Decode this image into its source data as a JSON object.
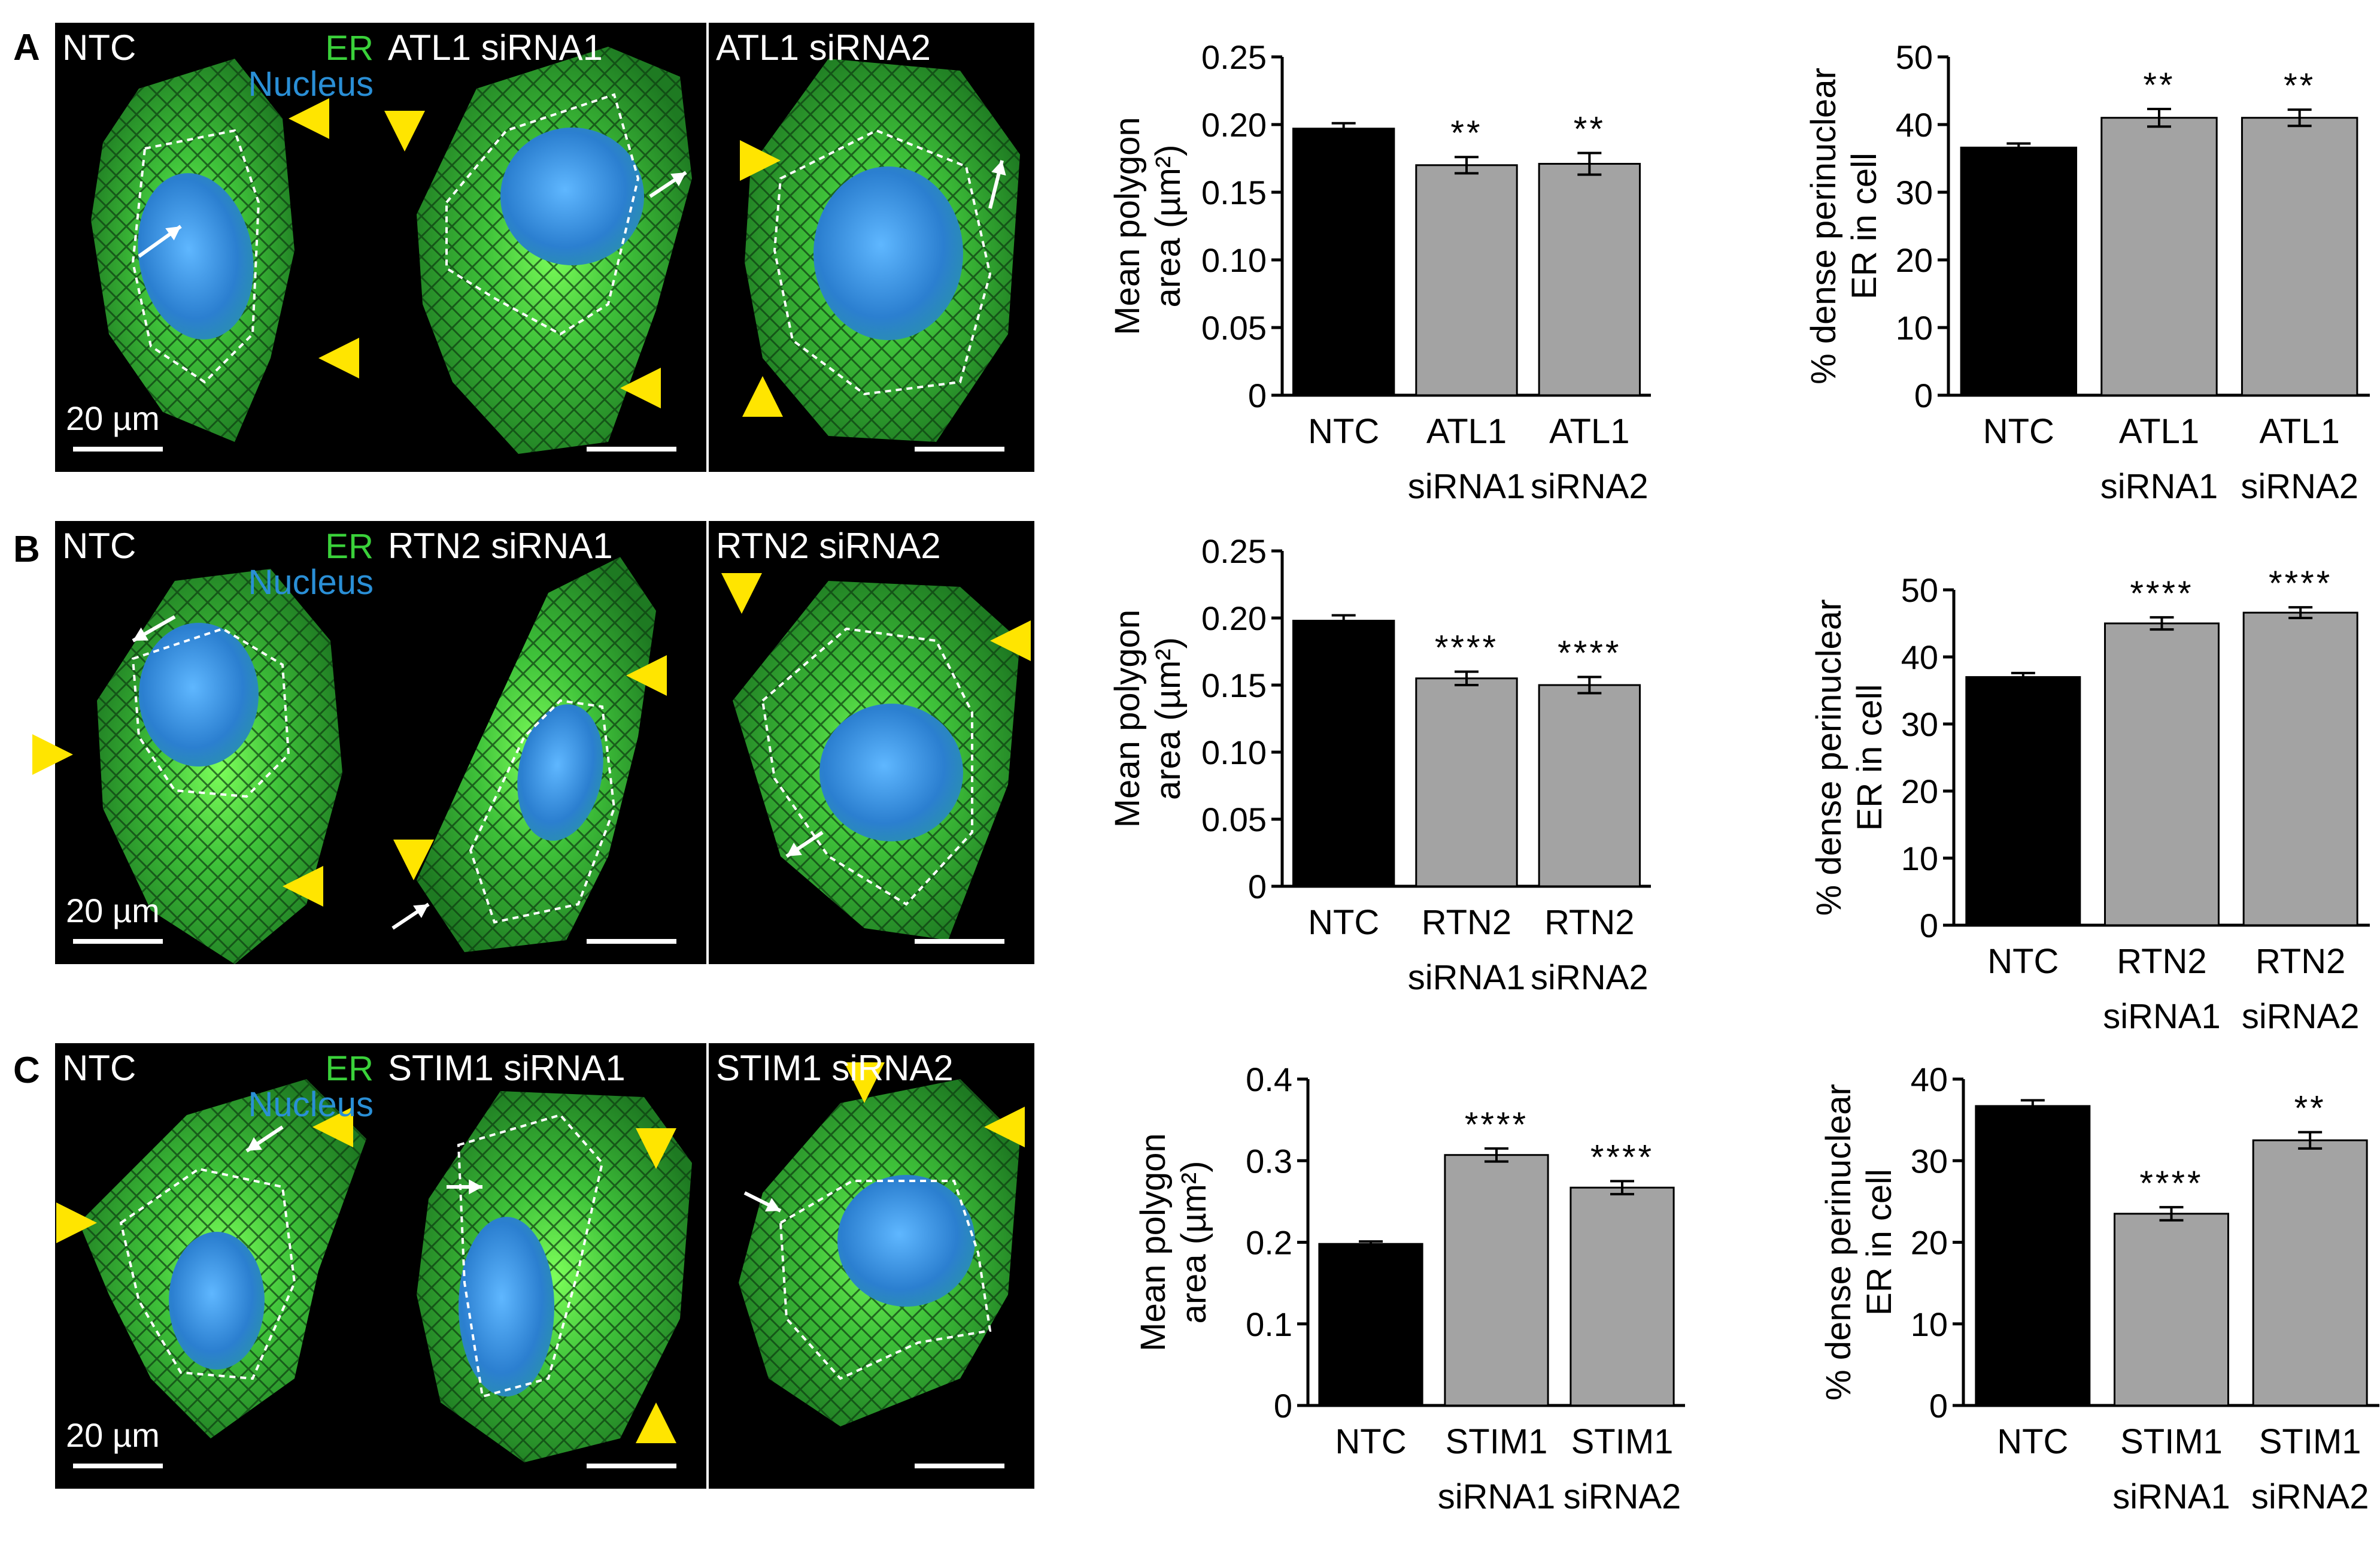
{
  "figure": {
    "rows": [
      {
        "letter": "A",
        "panels": [
          {
            "label": "NTC",
            "legend_er": "ER",
            "legend_nucleus": "Nucleus",
            "scale_label": "20 µm"
          },
          {
            "label": "ATL1 siRNA1"
          },
          {
            "label": "ATL1 siRNA2"
          }
        ]
      },
      {
        "letter": "B",
        "panels": [
          {
            "label": "NTC",
            "legend_er": "ER",
            "legend_nucleus": "Nucleus",
            "scale_label": "20 µm"
          },
          {
            "label": "RTN2 siRNA1"
          },
          {
            "label": "RTN2 siRNA2"
          }
        ]
      },
      {
        "letter": "C",
        "panels": [
          {
            "label": "NTC",
            "legend_er": "ER",
            "legend_nucleus": "Nucleus",
            "scale_label": "20 µm"
          },
          {
            "label": "STIM1 siRNA1"
          },
          {
            "label": "STIM1 siRNA2"
          }
        ]
      }
    ],
    "colors": {
      "micrograph_background": "#000000",
      "er_green": "#2fa02f",
      "nucleus_blue": "#2a86c9",
      "arrowhead_yellow": "#ffe500",
      "control_bar": "#000000",
      "knockdown_bar": "#a3a3a3"
    }
  },
  "chart_data": [
    {
      "type": "bar",
      "row": "A",
      "ylabel_line1": "Mean polygon",
      "ylabel_line2": "area (µm²)",
      "ylim": [
        0,
        0.25
      ],
      "yticks": [
        "0",
        "0.05",
        "0.10",
        "0.15",
        "0.20",
        "0.25"
      ],
      "categories": [
        [
          "NTC"
        ],
        [
          "ATL1",
          "siRNA1"
        ],
        [
          "ATL1",
          "siRNA2"
        ]
      ],
      "values": [
        0.197,
        0.17,
        0.171
      ],
      "errors": [
        0.004,
        0.006,
        0.008
      ],
      "significance": [
        "",
        "**",
        "**"
      ]
    },
    {
      "type": "bar",
      "row": "A",
      "ylabel_line1": "% dense perinuclear",
      "ylabel_line2": "ER in cell",
      "ylim": [
        0,
        50
      ],
      "yticks": [
        "0",
        "10",
        "20",
        "30",
        "40",
        "50"
      ],
      "categories": [
        [
          "NTC"
        ],
        [
          "ATL1",
          "siRNA1"
        ],
        [
          "ATL1",
          "siRNA2"
        ]
      ],
      "values": [
        36.6,
        41.0,
        41.0
      ],
      "errors": [
        0.6,
        1.3,
        1.2
      ],
      "significance": [
        "",
        "**",
        "**"
      ]
    },
    {
      "type": "bar",
      "row": "B",
      "ylabel_line1": "Mean polygon",
      "ylabel_line2": "area (µm²)",
      "ylim": [
        0,
        0.25
      ],
      "yticks": [
        "0",
        "0.05",
        "0.10",
        "0.15",
        "0.20",
        "0.25"
      ],
      "categories": [
        [
          "NTC"
        ],
        [
          "RTN2",
          "siRNA1"
        ],
        [
          "RTN2",
          "siRNA2"
        ]
      ],
      "values": [
        0.198,
        0.155,
        0.15
      ],
      "errors": [
        0.004,
        0.005,
        0.006
      ],
      "significance": [
        "",
        "****",
        "****"
      ]
    },
    {
      "type": "bar",
      "row": "B",
      "ylabel_line1": "% dense perinuclear",
      "ylabel_line2": "ER in cell",
      "ylim": [
        0,
        50
      ],
      "yticks": [
        "0",
        "10",
        "20",
        "30",
        "40",
        "50"
      ],
      "categories": [
        [
          "NTC"
        ],
        [
          "RTN2",
          "siRNA1"
        ],
        [
          "RTN2",
          "siRNA2"
        ]
      ],
      "values": [
        37.0,
        45.0,
        46.6
      ],
      "errors": [
        0.6,
        0.9,
        0.8
      ],
      "significance": [
        "",
        "****",
        "****"
      ]
    },
    {
      "type": "bar",
      "row": "C",
      "ylabel_line1": "Mean polygon",
      "ylabel_line2": "area (µm²)",
      "ylim": [
        0,
        0.4
      ],
      "yticks": [
        "0",
        "0.1",
        "0.2",
        "0.3",
        "0.4"
      ],
      "categories": [
        [
          "NTC"
        ],
        [
          "STIM1",
          "siRNA1"
        ],
        [
          "STIM1",
          "siRNA2"
        ]
      ],
      "values": [
        0.198,
        0.307,
        0.267
      ],
      "errors": [
        0.003,
        0.008,
        0.008
      ],
      "significance": [
        "",
        "****",
        "****"
      ]
    },
    {
      "type": "bar",
      "row": "C",
      "ylabel_line1": "% dense perinuclear",
      "ylabel_line2": "ER in cell",
      "ylim": [
        0,
        40
      ],
      "yticks": [
        "0",
        "10",
        "20",
        "30",
        "40"
      ],
      "categories": [
        [
          "NTC"
        ],
        [
          "STIM1",
          "siRNA1"
        ],
        [
          "STIM1",
          "siRNA2"
        ]
      ],
      "values": [
        36.7,
        23.5,
        32.5
      ],
      "errors": [
        0.7,
        0.8,
        1.0
      ],
      "significance": [
        "",
        "****",
        "**"
      ]
    }
  ]
}
